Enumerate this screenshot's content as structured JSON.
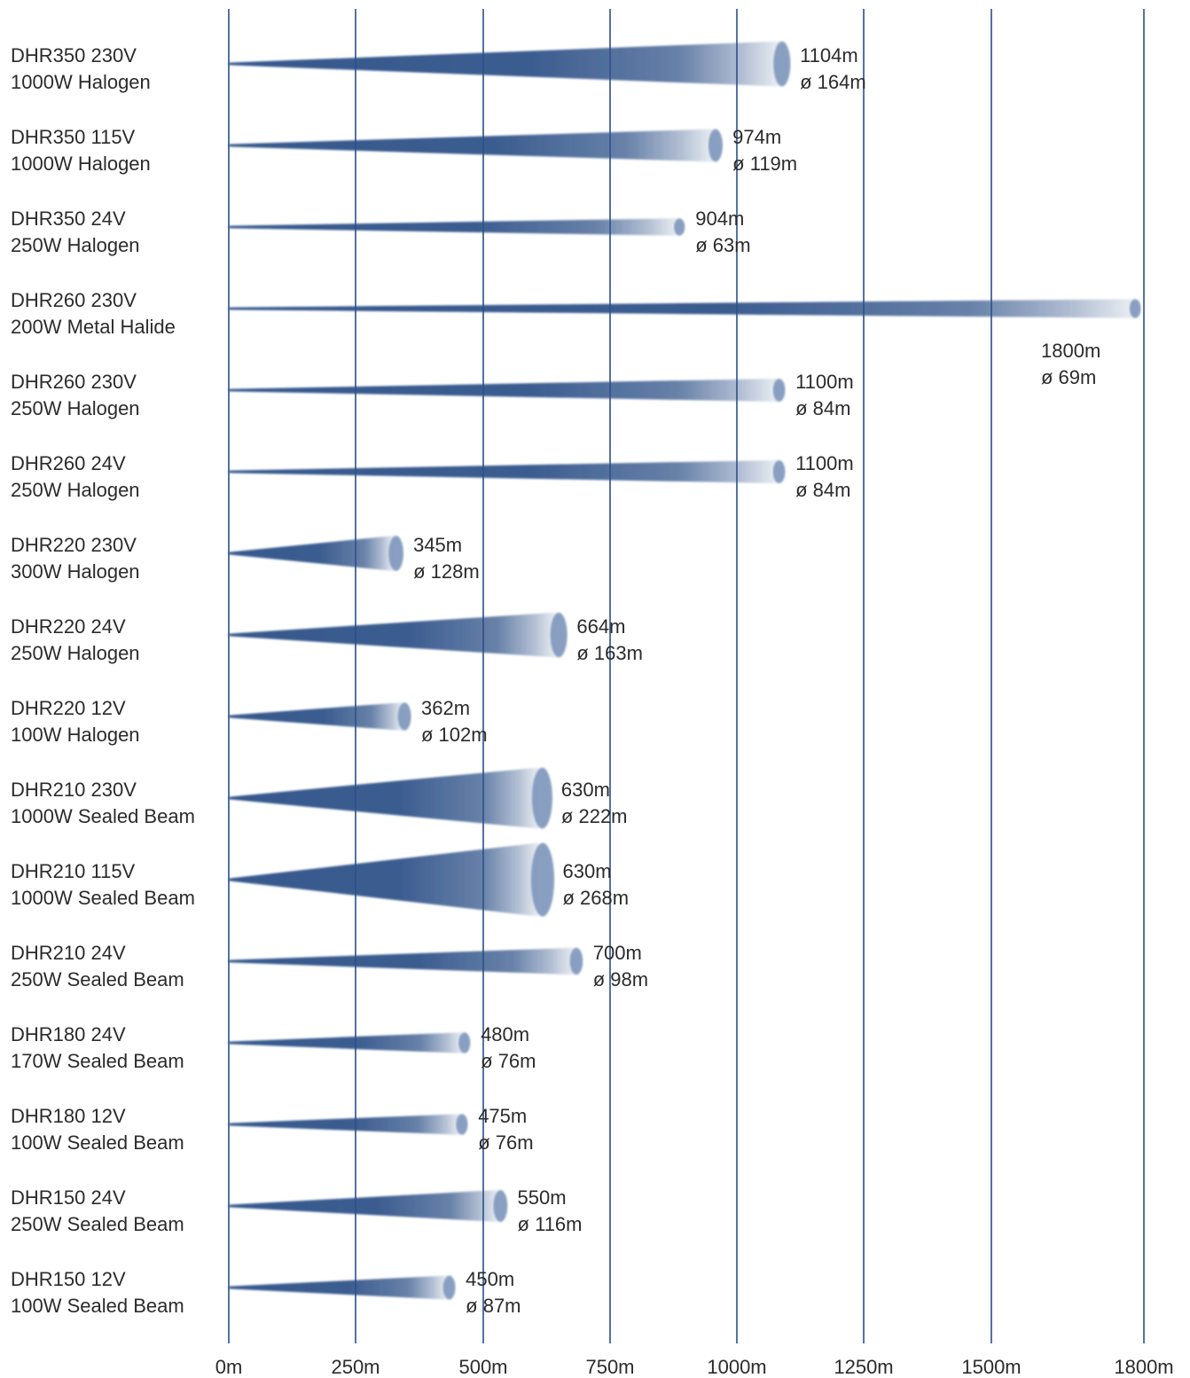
{
  "chart_data": {
    "type": "bar",
    "x_ticks": [
      {
        "value": 0,
        "label": "0m"
      },
      {
        "value": 250,
        "label": "250m"
      },
      {
        "value": 500,
        "label": "500m"
      },
      {
        "value": 750,
        "label": "750m"
      },
      {
        "value": 1000,
        "label": "1000m"
      },
      {
        "value": 1250,
        "label": "1250m"
      },
      {
        "value": 1500,
        "label": "1500m"
      },
      {
        "value": 1800,
        "label": "1800m"
      }
    ],
    "xlim": [
      0,
      1800
    ],
    "grid": true,
    "colors": {
      "beam": "#2d5087",
      "grid": "#2a4f8a",
      "text": "#2b2b2b"
    },
    "categories": [
      [
        "DHR350 230V",
        "1000W Halogen"
      ],
      [
        "DHR350 115V",
        "1000W Halogen"
      ],
      [
        "DHR350 24V",
        "250W Halogen"
      ],
      [
        "DHR260 230V",
        "200W Metal Halide"
      ],
      [
        "DHR260 230V",
        "250W Halogen"
      ],
      [
        "DHR260 24V",
        "250W Halogen"
      ],
      [
        "DHR220 230V",
        "300W Halogen"
      ],
      [
        "DHR220 24V",
        "250W Halogen"
      ],
      [
        "DHR220 12V",
        "100W Halogen"
      ],
      [
        "DHR210 230V",
        "1000W Sealed Beam"
      ],
      [
        "DHR210 115V",
        "1000W Sealed Beam"
      ],
      [
        "DHR210 24V",
        "250W Sealed Beam"
      ],
      [
        "DHR180 24V",
        "170W Sealed Beam"
      ],
      [
        "DHR180 12V",
        "100W Sealed Beam"
      ],
      [
        "DHR150 24V",
        "250W Sealed Beam"
      ],
      [
        "DHR150 12V",
        "100W Sealed Beam"
      ]
    ],
    "series": [
      {
        "range": [
          1104,
          974,
          904,
          1800,
          1100,
          1100,
          345,
          664,
          362,
          630,
          630,
          700,
          480,
          475,
          550,
          450
        ],
        "range_label": [
          "1104m",
          "974m",
          "904m",
          "1800m",
          "1100m",
          "1100m",
          "345m",
          "664m",
          "362m",
          "630m",
          "630m",
          "700m",
          "480m",
          "475m",
          "550m",
          "450m"
        ]
      },
      {
        "diameter": [
          164,
          119,
          63,
          69,
          84,
          84,
          128,
          163,
          102,
          222,
          268,
          98,
          76,
          76,
          116,
          87
        ],
        "diameter_label": [
          "ø 164m",
          "ø 119m",
          "ø 63m",
          "ø 69m",
          "ø 84m",
          "ø 84m",
          "ø 128m",
          "ø 163m",
          "ø 102m",
          "ø 222m",
          "ø 268m",
          "ø 98m",
          "ø 76m",
          "ø 76m",
          "ø 116m",
          "ø 87m"
        ]
      }
    ]
  }
}
